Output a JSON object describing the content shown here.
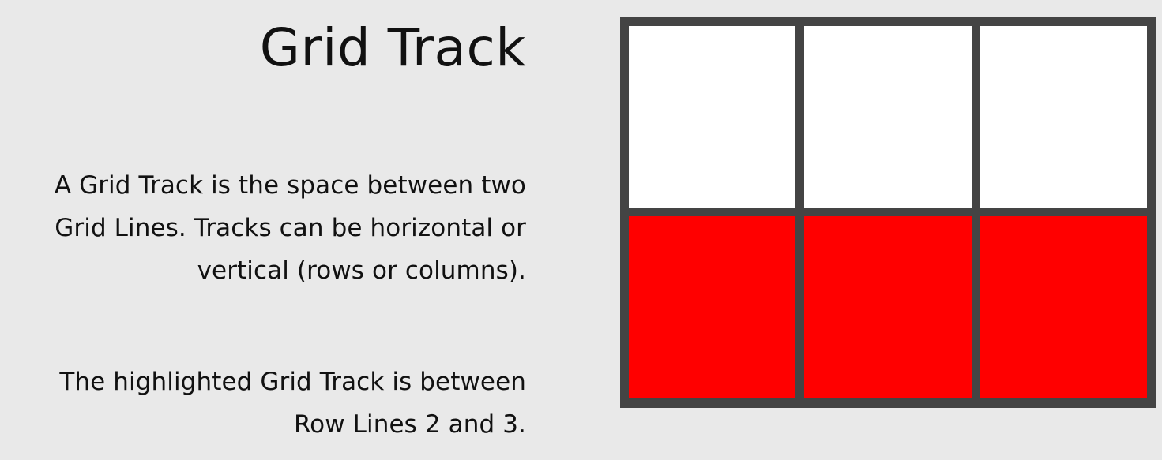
{
  "title": "Grid Track",
  "description_lines": [
    "A Grid Track is the space between two",
    "Grid Lines. Tracks can be horizontal or",
    "vertical (rows or columns)."
  ],
  "highlight_lines": [
    "The highlighted Grid Track is between",
    "Row Lines 2 and 3."
  ],
  "diagram": {
    "rows": 2,
    "columns": 3,
    "highlighted_row": 2,
    "colors": {
      "grid_line": "#444444",
      "cell": "#ffffff",
      "highlight": "#ff0000",
      "background": "#e9e9e9"
    }
  }
}
